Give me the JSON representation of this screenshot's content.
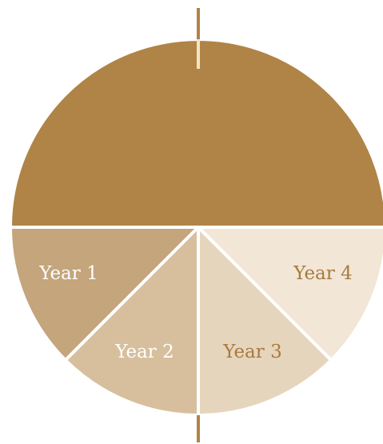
{
  "segments": [
    {
      "label": "Year 1"
    },
    {
      "label": "Year 2"
    },
    {
      "label": "Year 3"
    },
    {
      "label": "Year 4"
    }
  ]
}
